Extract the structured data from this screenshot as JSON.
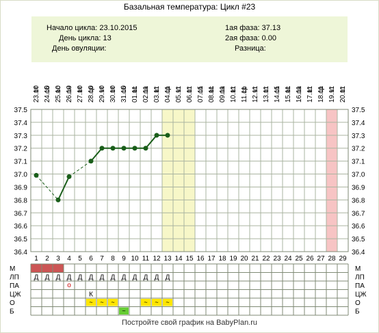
{
  "title": "Базальная температура: Цикл #23",
  "info": {
    "cycle_start": "Начало цикла: 23.10.2015",
    "cycle_day": "День цикла: 13",
    "ovulation_day": "День овуляции:",
    "phase1": "1ая фаза: 37.13",
    "phase2": "2ая фаза: 0.00",
    "difference": "Разница:"
  },
  "footer": "Постройте свой график на BabyPlan.ru",
  "colors": {
    "line": "#1a5e1a",
    "grid": "#aab4a0",
    "highlight_yellow": "#f7f7c8",
    "highlight_pink": "#f7c4c4",
    "menses": "#cc5555",
    "o_yellow": "#ffe600",
    "b_green": "#66cc33"
  },
  "chart_data": {
    "type": "line",
    "x": [
      "23.10",
      "24.10",
      "25.10",
      "26.10",
      "27.10",
      "28.10",
      "29.10",
      "30.10",
      "31.10",
      "01.11",
      "02.11",
      "03.11",
      "04.11",
      "05.11",
      "06.11",
      "07.11",
      "08.11",
      "09.11",
      "10.11",
      "11.11",
      "12.11",
      "13.11",
      "14.11",
      "15.11",
      "16.11",
      "17.11",
      "18.11",
      "19.11",
      "20.11"
    ],
    "weekdays": [
      "пт",
      "сб",
      "вс",
      "пн",
      "вт",
      "ср",
      "чт",
      "пт",
      "сб",
      "вс",
      "пн",
      "вт",
      "ср",
      "чт",
      "пт",
      "сб",
      "вс",
      "пн",
      "вт",
      "ср",
      "чт",
      "пт",
      "сб",
      "вс",
      "пн",
      "вт",
      "ср",
      "чт",
      "пт"
    ],
    "days": [
      "1",
      "2",
      "3",
      "4",
      "5",
      "6",
      "7",
      "8",
      "9",
      "10",
      "11",
      "12",
      "13",
      "14",
      "15",
      "16",
      "17",
      "18",
      "19",
      "20",
      "21",
      "22",
      "23",
      "24",
      "25",
      "26",
      "27",
      "28",
      "29"
    ],
    "y_ticks": [
      "37.5",
      "37.4",
      "37.3",
      "37.2",
      "37.1",
      "37.0",
      "36.9",
      "36.8",
      "36.7",
      "36.6",
      "36.5",
      "36.4"
    ],
    "ylim": [
      36.4,
      37.5
    ],
    "points": [
      {
        "day": 1,
        "temp": 36.99
      },
      {
        "day": 3,
        "temp": 36.8
      },
      {
        "day": 4,
        "temp": 36.98
      },
      {
        "day": 6,
        "temp": 37.1
      },
      {
        "day": 7,
        "temp": 37.2
      },
      {
        "day": 8,
        "temp": 37.2
      },
      {
        "day": 9,
        "temp": 37.2
      },
      {
        "day": 10,
        "temp": 37.2
      },
      {
        "day": 11,
        "temp": 37.2
      },
      {
        "day": 12,
        "temp": 37.3
      },
      {
        "day": 13,
        "temp": 37.3
      }
    ],
    "dashed_segments": [
      [
        1,
        3
      ],
      [
        4,
        6
      ]
    ],
    "highlight_yellow_days": [
      13,
      14,
      15
    ],
    "highlight_pink_days": [
      28
    ],
    "rows": {
      "labels": [
        "М",
        "ЛП",
        "ПА",
        "ЦЖ",
        "О",
        "Б"
      ],
      "menses_days": [
        1,
        2,
        3
      ],
      "lp_mark": "Д",
      "lp_days": [
        1,
        2,
        3,
        4,
        5,
        6,
        7,
        8,
        9,
        10,
        11,
        12,
        13
      ],
      "pa_mark": "о",
      "pa_days": [
        4
      ],
      "cz_mark": "К",
      "cz_days": [
        6
      ],
      "o_mark": "~",
      "o_days": [
        6,
        7,
        8,
        11,
        12,
        13
      ],
      "b_mark": "~",
      "b_days": [
        9
      ]
    }
  }
}
